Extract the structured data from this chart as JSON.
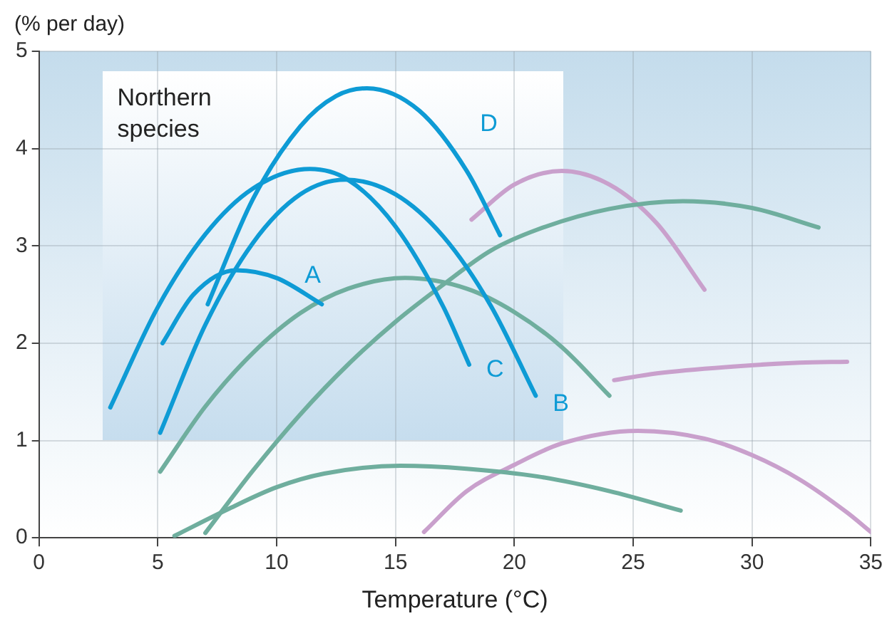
{
  "chart_data": {
    "type": "line",
    "xlabel": "Temperature (°C)",
    "ylabel": "(% per day)",
    "annotations": [
      "Northern species"
    ],
    "xlim": [
      0,
      35
    ],
    "xticks": [
      0,
      5,
      10,
      15,
      20,
      25,
      30,
      35
    ],
    "ylim": [
      0,
      5
    ],
    "yticks": [
      0,
      1,
      2,
      3,
      4,
      5
    ],
    "grid": true,
    "legend": false,
    "marker": "none",
    "line_style": "solid",
    "series": [
      {
        "name": "A",
        "color": "#0e9bd5",
        "x": [
          5.2,
          6.5,
          8.3,
          10,
          11.9
        ],
        "values": [
          2.0,
          2.5,
          2.75,
          2.67,
          2.4
        ]
      },
      {
        "name": "B",
        "color": "#0e9bd5",
        "x": [
          5.1,
          7,
          9,
          11,
          12.9,
          15,
          17,
          19,
          20.9
        ],
        "values": [
          1.08,
          2.19,
          3.03,
          3.53,
          3.68,
          3.53,
          3.1,
          2.39,
          1.46
        ]
      },
      {
        "name": "C",
        "color": "#0e9bd5",
        "x": [
          3,
          5,
          7,
          9,
          11.4,
          13,
          15,
          17,
          18.1
        ],
        "values": [
          1.34,
          2.37,
          3.12,
          3.59,
          3.79,
          3.68,
          3.2,
          2.38,
          1.78
        ]
      },
      {
        "name": "D",
        "color": "#0e9bd5",
        "x": [
          7.1,
          9,
          11,
          12.5,
          13.8,
          16,
          18,
          19.4
        ],
        "values": [
          2.4,
          3.48,
          4.23,
          4.54,
          4.62,
          4.39,
          3.77,
          3.11
        ]
      },
      {
        "color": "#6fae9e",
        "x": [
          5.1,
          7,
          9,
          11,
          13,
          15.4,
          18,
          20,
          22,
          24
        ],
        "values": [
          0.68,
          1.35,
          1.9,
          2.31,
          2.56,
          2.67,
          2.56,
          2.32,
          1.96,
          1.46
        ]
      },
      {
        "color": "#6fae9e",
        "x": [
          7,
          9,
          11,
          13,
          15,
          17,
          19,
          21,
          24,
          27.1,
          30,
          32.8
        ],
        "values": [
          0.05,
          0.69,
          1.27,
          1.78,
          2.22,
          2.6,
          2.95,
          3.17,
          3.38,
          3.46,
          3.39,
          3.19
        ]
      },
      {
        "color": "#6fae9e",
        "x": [
          5.7,
          8,
          10,
          12,
          15.2,
          18,
          21,
          24,
          27
        ],
        "values": [
          0.02,
          0.3,
          0.52,
          0.66,
          0.74,
          0.71,
          0.63,
          0.48,
          0.28
        ]
      },
      {
        "color": "#c9a0cc",
        "x": [
          18.2,
          20,
          22,
          24,
          26,
          28
        ],
        "values": [
          3.27,
          3.63,
          3.77,
          3.63,
          3.23,
          2.55
        ]
      },
      {
        "color": "#c9a0cc",
        "x": [
          24.2,
          26,
          29.2,
          32,
          34
        ],
        "values": [
          1.62,
          1.69,
          1.76,
          1.8,
          1.81
        ]
      },
      {
        "color": "#c9a0cc",
        "x": [
          16.2,
          18,
          20,
          22,
          25.2,
          28,
          30,
          32,
          34,
          35
        ],
        "values": [
          0.06,
          0.48,
          0.75,
          0.97,
          1.1,
          1.02,
          0.85,
          0.6,
          0.26,
          0.06
        ]
      }
    ]
  }
}
